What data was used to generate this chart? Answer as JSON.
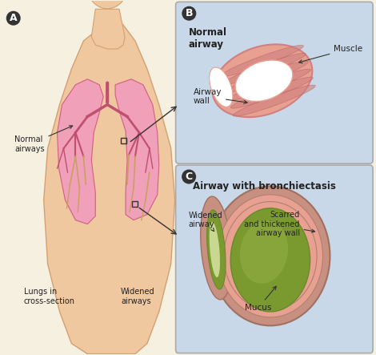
{
  "bg_color": "#f5f0e0",
  "panel_b_bg": "#c8d8e8",
  "panel_c_bg": "#c8d8e8",
  "label_A": "A",
  "label_B": "B",
  "label_C": "C",
  "title_B": "Normal\nairway",
  "title_C": "Airway with bronchiectasis",
  "labels_main": [
    "Normal\nairways",
    "Lungs in\ncross-section",
    "Widened\nairways"
  ],
  "labels_B": [
    "Muscle",
    "Airway\nwall"
  ],
  "labels_C": [
    "Widened\nairway",
    "Scarred\nand thickened\nairway wall",
    "Mucus"
  ],
  "skin_color": "#f0c8a0",
  "lung_pink": "#f0a0b8",
  "lung_dark_pink": "#d06080",
  "bronchi_color": "#c05070",
  "mucus_color": "#8faa40",
  "muscle_color": "#d08080",
  "airway_wall_color": "#e8a090",
  "scar_color": "#c89080",
  "white_lumen": "#ffffff",
  "olive_mucus": "#7a9a30",
  "body_outline": "#d4a070",
  "annotation_color": "#222222"
}
